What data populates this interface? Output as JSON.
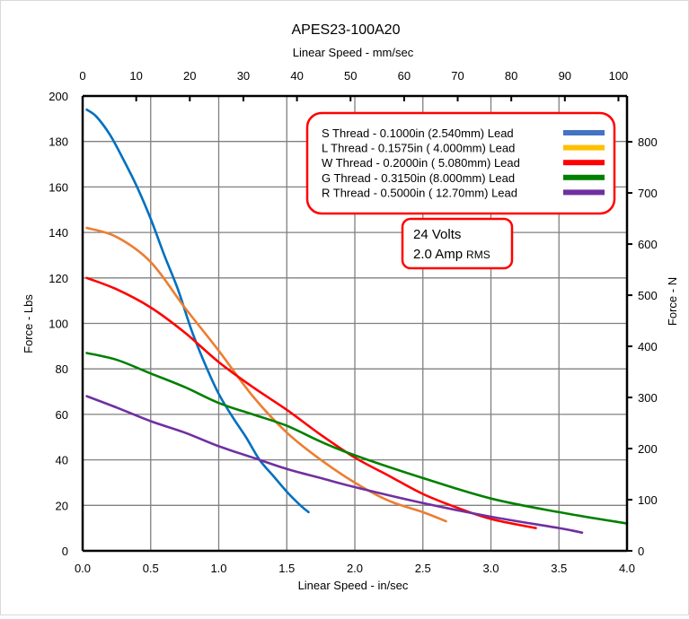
{
  "chart_data": {
    "type": "line",
    "title": "APES23-100A20",
    "xlabel": "Linear Speed - in/sec",
    "x2label": "Linear Speed - mm/sec",
    "ylabel": "Force - Lbs",
    "y2label": "Force - N",
    "xlim": [
      0,
      4.0
    ],
    "ylim": [
      0,
      200
    ],
    "x2lim_mm_per_sec": [
      0,
      101.6
    ],
    "y2lim_newtons": [
      0,
      889.6
    ],
    "grid": true,
    "legend_placement": "top-right",
    "xticks": [
      "0.0",
      "0.5",
      "1.0",
      "1.5",
      "2.0",
      "2.5",
      "3.0",
      "3.5",
      "4.0"
    ],
    "yticks": [
      "0",
      "20",
      "40",
      "60",
      "80",
      "100",
      "120",
      "140",
      "160",
      "180",
      "200"
    ],
    "x2ticks": [
      "0",
      "10",
      "20",
      "30",
      "40",
      "50",
      "60",
      "70",
      "80",
      "90",
      "100"
    ],
    "y2ticks": [
      "0",
      "100",
      "200",
      "300",
      "400",
      "500",
      "600",
      "700",
      "800"
    ],
    "series": [
      {
        "name": "S Thread -  0.1000in (2.540mm) Lead",
        "line_color": "#0070C0",
        "legend_color": "#4472C4",
        "x": [
          0.03,
          0.1,
          0.2,
          0.3,
          0.4,
          0.5,
          0.6,
          0.7,
          0.8,
          0.9,
          1.0,
          1.1,
          1.2,
          1.3,
          1.4,
          1.5,
          1.6,
          1.66
        ],
        "y": [
          194,
          191,
          183,
          172,
          160,
          146,
          130,
          115,
          97,
          82,
          69,
          59,
          50,
          40,
          33,
          26,
          20,
          17
        ]
      },
      {
        "name": "L Thread -  0.1575in ( 4.000mm) Lead",
        "line_color": "#ED7D31",
        "legend_color": "#FFC000",
        "x": [
          0.03,
          0.25,
          0.5,
          0.75,
          1.0,
          1.25,
          1.5,
          1.75,
          2.0,
          2.25,
          2.5,
          2.67
        ],
        "y": [
          142,
          138,
          127,
          107,
          88,
          68,
          52,
          40,
          30,
          22,
          17,
          13
        ]
      },
      {
        "name": "W Thread - 0.2000in ( 5.080mm) Lead",
        "line_color": "#FF0000",
        "legend_color": "#FF0000",
        "x": [
          0.03,
          0.25,
          0.5,
          0.75,
          1.0,
          1.25,
          1.5,
          1.75,
          2.0,
          2.25,
          2.5,
          2.75,
          3.0,
          3.33
        ],
        "y": [
          120,
          115,
          107,
          96,
          83,
          72,
          62,
          51,
          41,
          33,
          25,
          19,
          14,
          10
        ]
      },
      {
        "name": "G Thread - 0.3150in (8.000mm) Lead",
        "line_color": "#008000",
        "legend_color": "#008000",
        "x": [
          0.03,
          0.25,
          0.5,
          0.75,
          1.0,
          1.25,
          1.5,
          1.75,
          2.0,
          2.5,
          3.0,
          3.5,
          4.0
        ],
        "y": [
          87,
          84,
          78,
          72,
          65,
          60,
          55,
          48,
          42,
          32,
          23,
          17,
          12
        ]
      },
      {
        "name": "R Thread - 0.5000in ( 12.70mm) Lead",
        "line_color": "#7030A0",
        "legend_color": "#7030A0",
        "x": [
          0.03,
          0.25,
          0.5,
          0.75,
          1.0,
          1.25,
          1.5,
          1.75,
          2.0,
          2.5,
          3.0,
          3.5,
          3.67
        ],
        "y": [
          68,
          63,
          57,
          52,
          46,
          41,
          36,
          32,
          28,
          21,
          15,
          10,
          8
        ]
      }
    ],
    "annotation": {
      "line1": "24 Volts",
      "line2_main": "2.0 Amp",
      "line2_small": "RMS"
    },
    "legend_border_color": "#FF0000"
  }
}
